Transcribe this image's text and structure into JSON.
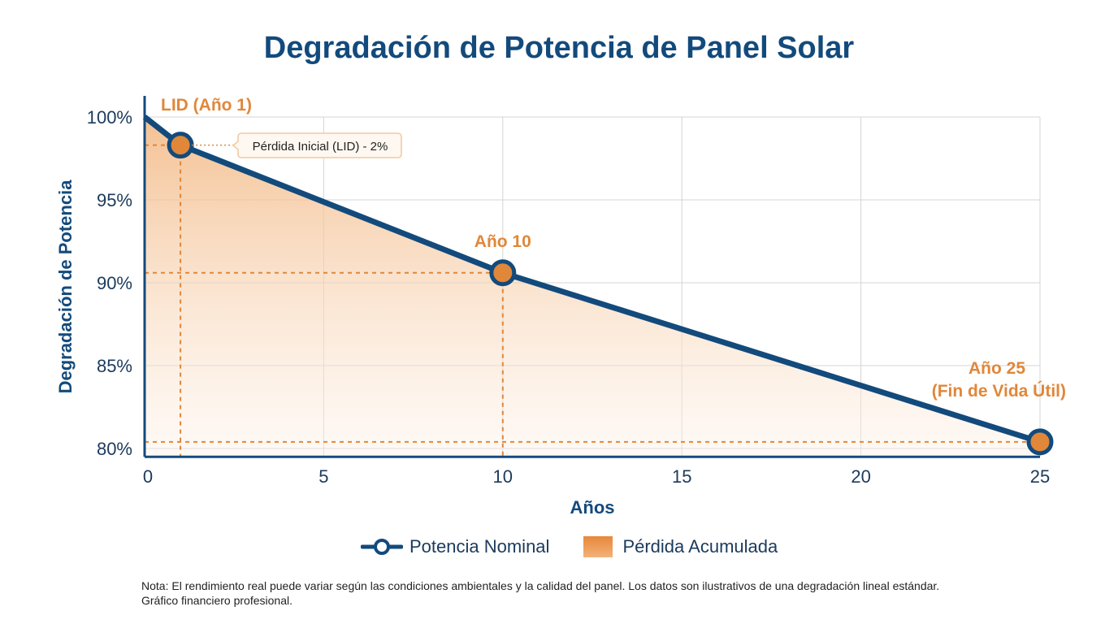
{
  "chart_data": {
    "type": "line",
    "title": "Degradación de Potencia de Panel Solar",
    "xlabel": "Años",
    "ylabel": "Degradación de Potencia",
    "xlim": [
      0,
      25
    ],
    "ylim": [
      79.5,
      100
    ],
    "x_ticks": [
      0,
      5,
      10,
      15,
      20,
      25
    ],
    "y_ticks": [
      80,
      85,
      90,
      95,
      100
    ],
    "y_tick_labels": [
      "80%",
      "85%",
      "90%",
      "95%",
      "100%"
    ],
    "grid": true,
    "area_fill": true,
    "series": [
      {
        "name": "Potencia Nominal",
        "x": [
          0,
          1,
          10,
          25
        ],
        "y": [
          100,
          98.3,
          90.6,
          80.4
        ],
        "color": "#134a7c"
      }
    ],
    "markers": [
      {
        "x": 1,
        "y": 98.3,
        "label": "LID (Año 1)"
      },
      {
        "x": 10,
        "y": 90.6,
        "label": "Año 10"
      },
      {
        "x": 25,
        "y": 80.4,
        "label": "Año 25",
        "label2": "(Fin de Vida Útil)"
      }
    ],
    "callout": "Pérdida Inicial (LID) - 2%",
    "legend": {
      "placement": "bottom",
      "entries": [
        "Potencia Nominal",
        "Pérdida Acumulada"
      ]
    },
    "colors": {
      "line": "#134a7c",
      "accent": "#e0873a",
      "fill": "#f5c79d"
    }
  },
  "note": {
    "line1": "Nota: El rendimiento real puede variar según las condiciones ambientales y la calidad del panel. Los datos son ilustrativos de una degradación lineal estándar.",
    "line2": "Gráfico financiero profesional."
  }
}
